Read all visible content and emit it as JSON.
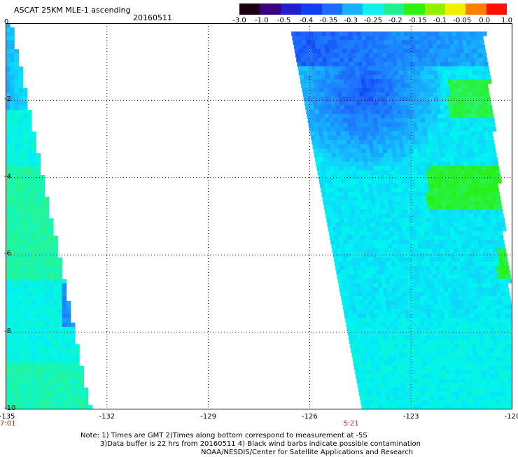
{
  "header": {
    "title": "ASCAT 25KM MLE-1 ascending",
    "date": "20160511"
  },
  "colorbar": {
    "labels": [
      "-3.0",
      "-1.0",
      "-0.5",
      "-0.4",
      "-0.35",
      "-0.3",
      "-0.25",
      "-0.2",
      "-0.15",
      "-0.1",
      "-0.05",
      "0.0",
      "1.0"
    ],
    "colors": [
      "#1a0010",
      "#3a0080",
      "#2020c8",
      "#1040f0",
      "#1c6cff",
      "#18b0ff",
      "#10f0f0",
      "#20f090",
      "#30f010",
      "#90f000",
      "#f0f000",
      "#ff8000",
      "#ff1000"
    ]
  },
  "map": {
    "y_ticks": [
      "0",
      "-2",
      "-4",
      "-6",
      "-8",
      "-10"
    ],
    "x_ticks": [
      "-135",
      "-132",
      "-129",
      "-126",
      "-123",
      "-120"
    ],
    "times": [
      {
        "text": "7:01",
        "lon": -135
      },
      {
        "text": "5:21",
        "lon": -124.8
      }
    ],
    "grid": "dotted",
    "lon_range": [
      -135,
      -120
    ],
    "lat_range": [
      -10,
      0
    ]
  },
  "footer": {
    "note_line1": "Note: 1) Times are GMT 2)Times along bottom correspond to measurement at -5S",
    "note_line2": "3)Data buffer is 22 hrs from 20160511 4) Black wind barbs indicate possible contamination",
    "credit": "NOAA/NESDIS/Center for Satellite Applications and Research"
  }
}
